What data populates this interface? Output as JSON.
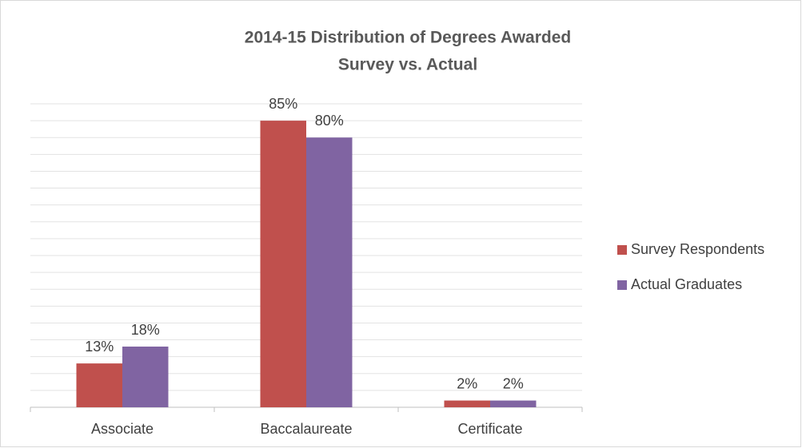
{
  "chart_data": {
    "type": "bar",
    "title": "2014-15 Distribution of Degrees Awarded",
    "subtitle": "Survey vs. Actual",
    "categories": [
      "Associate",
      "Baccalaureate",
      "Certificate"
    ],
    "series": [
      {
        "name": "Survey Respondents",
        "color": "#c0504d",
        "values": [
          13,
          85,
          2
        ],
        "value_labels": [
          "13%",
          "85%",
          "2%"
        ]
      },
      {
        "name": "Actual Graduates",
        "color": "#8064a2",
        "values": [
          18,
          80,
          2
        ],
        "value_labels": [
          "18%",
          "80%",
          "2%"
        ]
      }
    ],
    "ylim": [
      0,
      90
    ],
    "yticks": [
      0,
      5,
      10,
      15,
      20,
      25,
      30,
      35,
      40,
      45,
      50,
      55,
      60,
      65,
      70,
      75,
      80,
      85,
      90
    ],
    "grid": true,
    "legend": "right"
  }
}
